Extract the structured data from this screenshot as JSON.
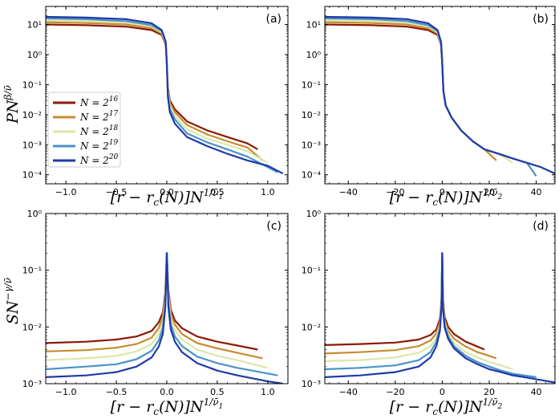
{
  "figure": {
    "ylabel_top": "PN^{β/ν̄}",
    "ylabel_bottom": "SN^{−γ/ν̄}",
    "xlabel_left": "[r − r_c(N)]N^{1/ν̄_1}",
    "xlabel_right": "[r − r_c(N)]N^{1/ν̄_2}"
  },
  "legend": {
    "entries": [
      {
        "label_base": "N = 2",
        "label_exp": "16",
        "color": "#8b1a06"
      },
      {
        "label_base": "N = 2",
        "label_exp": "17",
        "color": "#c68c30"
      },
      {
        "label_base": "N = 2",
        "label_exp": "18",
        "color": "#dde6a8"
      },
      {
        "label_base": "N = 2",
        "label_exp": "19",
        "color": "#4a93c8"
      },
      {
        "label_base": "N = 2",
        "label_exp": "20",
        "color": "#1f3aa8"
      }
    ]
  },
  "chart_data": [
    {
      "panel": "(a)",
      "type": "line",
      "xscale": "linear",
      "yscale": "log",
      "xlim": [
        -1.2,
        1.2
      ],
      "ylim": [
        5e-05,
        40
      ],
      "xticks": [
        -1.0,
        -0.5,
        0.0,
        0.5,
        1.0
      ],
      "xtick_labels": [
        "−1.0",
        "−0.5",
        "0.0",
        "0.5",
        "1.0"
      ],
      "yticks": [
        0.0001,
        0.001,
        0.01,
        0.1,
        1,
        10
      ],
      "ytick_labels": [
        "10^-4",
        "10^-3",
        "10^-2",
        "10^-1",
        "10^0",
        "10^1"
      ],
      "series": [
        {
          "name": "N = 2^16",
          "x": [
            -1.2,
            -0.8,
            -0.4,
            -0.15,
            -0.05,
            -0.01,
            0.0,
            0.01,
            0.03,
            0.08,
            0.2,
            0.4,
            0.6,
            0.8,
            0.9
          ],
          "y": [
            10,
            9.5,
            8.5,
            6.5,
            4.5,
            2.0,
            0.5,
            0.08,
            0.03,
            0.015,
            0.006,
            0.003,
            0.0018,
            0.0011,
            0.0007
          ]
        },
        {
          "name": "N = 2^17",
          "x": [
            -1.2,
            -0.8,
            -0.4,
            -0.15,
            -0.05,
            -0.01,
            0.0,
            0.01,
            0.03,
            0.08,
            0.2,
            0.4,
            0.6,
            0.8,
            0.95
          ],
          "y": [
            12,
            11.3,
            10,
            7.5,
            5.0,
            2.0,
            0.5,
            0.07,
            0.025,
            0.012,
            0.0045,
            0.0022,
            0.0013,
            0.0008,
            0.0003
          ]
        },
        {
          "name": "N = 2^18",
          "x": [
            -1.2,
            -0.8,
            -0.4,
            -0.15,
            -0.05,
            -0.01,
            0.0,
            0.01,
            0.03,
            0.08,
            0.2,
            0.4,
            0.6,
            0.8,
            1.0
          ],
          "y": [
            14,
            13.2,
            11.5,
            8.5,
            5.5,
            2.2,
            0.5,
            0.06,
            0.02,
            0.009,
            0.0033,
            0.0016,
            0.001,
            0.0006,
            0.00025
          ]
        },
        {
          "name": "N = 2^19",
          "x": [
            -1.2,
            -0.8,
            -0.4,
            -0.15,
            -0.05,
            -0.01,
            0.0,
            0.01,
            0.03,
            0.08,
            0.2,
            0.4,
            0.6,
            0.8,
            1.1
          ],
          "y": [
            16,
            15,
            13,
            9.5,
            6.0,
            2.4,
            0.5,
            0.05,
            0.015,
            0.007,
            0.0024,
            0.0012,
            0.0007,
            0.0004,
            0.00012
          ]
        },
        {
          "name": "N = 2^20",
          "x": [
            -1.2,
            -0.8,
            -0.4,
            -0.15,
            -0.05,
            -0.01,
            0.0,
            0.01,
            0.03,
            0.08,
            0.2,
            0.4,
            0.6,
            0.8,
            1.0,
            1.15
          ],
          "y": [
            18,
            17,
            15,
            11,
            6.5,
            2.6,
            0.5,
            0.04,
            0.012,
            0.005,
            0.0018,
            0.0009,
            0.0005,
            0.0003,
            0.0002,
            0.00011
          ]
        }
      ]
    },
    {
      "panel": "(b)",
      "type": "line",
      "xscale": "linear",
      "yscale": "log",
      "xlim": [
        -50,
        48
      ],
      "ylim": [
        5e-05,
        40
      ],
      "xticks": [
        -40,
        -20,
        0,
        20,
        40
      ],
      "xtick_labels": [
        "−40",
        "−20",
        "0",
        "20",
        "40"
      ],
      "yticks": [
        0.0001,
        0.001,
        0.01,
        0.1,
        1,
        10
      ],
      "ytick_labels": [
        "10^-4",
        "10^-3",
        "10^-2",
        "10^-1",
        "10^0",
        "10^1"
      ],
      "series": [
        {
          "name": "N = 2^16",
          "x": [
            -50,
            -30,
            -15,
            -6,
            -2,
            -0.5,
            0,
            0.5,
            1.5,
            4,
            8,
            13,
            18
          ],
          "y": [
            10,
            9.5,
            8.5,
            6.5,
            4.5,
            2.0,
            0.5,
            0.06,
            0.02,
            0.008,
            0.003,
            0.0013,
            0.0007
          ]
        },
        {
          "name": "N = 2^17",
          "x": [
            -50,
            -30,
            -15,
            -6,
            -2,
            -0.5,
            0,
            0.5,
            1.5,
            4,
            8,
            13,
            18,
            23
          ],
          "y": [
            12,
            11.3,
            10,
            7.5,
            5.0,
            2.0,
            0.5,
            0.06,
            0.02,
            0.008,
            0.003,
            0.0013,
            0.0007,
            0.0003
          ]
        },
        {
          "name": "N = 2^18",
          "x": [
            -50,
            -30,
            -15,
            -6,
            -2,
            -0.5,
            0,
            0.5,
            1.5,
            4,
            8,
            13,
            18,
            24,
            30
          ],
          "y": [
            14,
            13.2,
            11.5,
            8.5,
            5.5,
            2.2,
            0.5,
            0.06,
            0.02,
            0.008,
            0.003,
            0.0013,
            0.0007,
            0.0005,
            0.00025
          ]
        },
        {
          "name": "N = 2^19",
          "x": [
            -50,
            -30,
            -15,
            -6,
            -2,
            -0.5,
            0,
            0.5,
            1.5,
            4,
            8,
            13,
            18,
            24,
            30,
            36,
            40
          ],
          "y": [
            16,
            15,
            13,
            9.5,
            6.0,
            2.4,
            0.5,
            0.06,
            0.02,
            0.008,
            0.003,
            0.0013,
            0.0007,
            0.0005,
            0.00035,
            0.00025,
            9e-05
          ]
        },
        {
          "name": "N = 2^20",
          "x": [
            -50,
            -30,
            -15,
            -6,
            -2,
            -0.5,
            0,
            0.5,
            1.5,
            4,
            8,
            13,
            18,
            24,
            30,
            36,
            42,
            48
          ],
          "y": [
            18,
            17,
            15,
            11,
            6.5,
            2.6,
            0.5,
            0.06,
            0.02,
            0.008,
            0.003,
            0.0013,
            0.0007,
            0.0005,
            0.00035,
            0.00025,
            0.00018,
            0.00011
          ]
        }
      ]
    },
    {
      "panel": "(c)",
      "type": "line",
      "xscale": "linear",
      "yscale": "log",
      "xlim": [
        -1.2,
        1.2
      ],
      "ylim": [
        0.001,
        1
      ],
      "xticks": [
        -1.0,
        -0.5,
        0.0,
        0.5,
        1.0
      ],
      "xtick_labels": [
        "−1.0",
        "−0.5",
        "0.0",
        "0.5",
        "1.0"
      ],
      "yticks": [
        0.001,
        0.01,
        0.1,
        1
      ],
      "ytick_labels": [
        "10^-3",
        "10^-2",
        "10^-1",
        "10^0"
      ],
      "series": [
        {
          "name": "N = 2^16",
          "x": [
            -1.2,
            -0.8,
            -0.5,
            -0.3,
            -0.15,
            -0.08,
            -0.04,
            -0.015,
            0.0,
            0.015,
            0.04,
            0.08,
            0.15,
            0.3,
            0.5,
            0.7,
            0.9
          ],
          "y": [
            0.0052,
            0.0055,
            0.006,
            0.0068,
            0.0085,
            0.012,
            0.018,
            0.04,
            0.2,
            0.045,
            0.02,
            0.013,
            0.0095,
            0.0068,
            0.0055,
            0.0047,
            0.004
          ]
        },
        {
          "name": "N = 2^17",
          "x": [
            -1.2,
            -0.8,
            -0.5,
            -0.3,
            -0.15,
            -0.08,
            -0.04,
            -0.015,
            0.0,
            0.015,
            0.04,
            0.08,
            0.15,
            0.3,
            0.5,
            0.7,
            0.95
          ],
          "y": [
            0.0037,
            0.0039,
            0.0043,
            0.005,
            0.0065,
            0.0095,
            0.015,
            0.036,
            0.2,
            0.04,
            0.017,
            0.011,
            0.0075,
            0.0052,
            0.0042,
            0.0035,
            0.0028
          ]
        },
        {
          "name": "N = 2^18",
          "x": [
            -1.2,
            -0.8,
            -0.5,
            -0.3,
            -0.15,
            -0.08,
            -0.04,
            -0.015,
            0.0,
            0.015,
            0.04,
            0.08,
            0.15,
            0.3,
            0.5,
            0.7,
            1.0
          ],
          "y": [
            0.0026,
            0.0028,
            0.0031,
            0.0037,
            0.005,
            0.0075,
            0.012,
            0.03,
            0.2,
            0.034,
            0.014,
            0.0088,
            0.006,
            0.004,
            0.0031,
            0.0026,
            0.0019
          ]
        },
        {
          "name": "N = 2^19",
          "x": [
            -1.2,
            -0.8,
            -0.5,
            -0.3,
            -0.15,
            -0.08,
            -0.04,
            -0.015,
            0.0,
            0.015,
            0.04,
            0.08,
            0.15,
            0.3,
            0.5,
            0.7,
            1.1
          ],
          "y": [
            0.0018,
            0.002,
            0.0022,
            0.0027,
            0.0038,
            0.0058,
            0.0095,
            0.026,
            0.2,
            0.028,
            0.011,
            0.0068,
            0.0046,
            0.003,
            0.0023,
            0.0019,
            0.0014
          ]
        },
        {
          "name": "N = 2^20",
          "x": [
            -1.2,
            -0.8,
            -0.5,
            -0.3,
            -0.15,
            -0.08,
            -0.04,
            -0.015,
            0.0,
            0.015,
            0.04,
            0.08,
            0.15,
            0.3,
            0.5,
            0.7,
            1.0,
            1.15
          ],
          "y": [
            0.0013,
            0.0014,
            0.0016,
            0.002,
            0.0029,
            0.0045,
            0.0075,
            0.022,
            0.2,
            0.023,
            0.009,
            0.0055,
            0.0036,
            0.0023,
            0.0017,
            0.0014,
            0.0011,
            0.001
          ]
        }
      ]
    },
    {
      "panel": "(d)",
      "type": "line",
      "xscale": "linear",
      "yscale": "log",
      "xlim": [
        -50,
        48
      ],
      "ylim": [
        0.001,
        1
      ],
      "xticks": [
        -40,
        -20,
        0,
        20,
        40
      ],
      "xtick_labels": [
        "−40",
        "−20",
        "0",
        "20",
        "40"
      ],
      "yticks": [
        0.001,
        0.01,
        0.1,
        1
      ],
      "ytick_labels": [
        "10^-3",
        "10^-2",
        "10^-1",
        "10^0"
      ],
      "series": [
        {
          "name": "N = 2^16",
          "x": [
            -50,
            -35,
            -20,
            -10,
            -5,
            -2.5,
            -1,
            -0.3,
            0,
            0.3,
            1,
            2.5,
            5,
            10,
            15,
            18
          ],
          "y": [
            0.0048,
            0.005,
            0.0053,
            0.006,
            0.0072,
            0.009,
            0.014,
            0.03,
            0.2,
            0.03,
            0.015,
            0.01,
            0.0075,
            0.0055,
            0.0045,
            0.004
          ]
        },
        {
          "name": "N = 2^17",
          "x": [
            -50,
            -35,
            -20,
            -10,
            -5,
            -2.5,
            -1,
            -0.3,
            0,
            0.3,
            1,
            2.5,
            5,
            10,
            15,
            20,
            23
          ],
          "y": [
            0.0034,
            0.0036,
            0.0039,
            0.0046,
            0.0058,
            0.0077,
            0.012,
            0.028,
            0.2,
            0.028,
            0.013,
            0.0085,
            0.0062,
            0.0045,
            0.0036,
            0.0031,
            0.0028
          ]
        },
        {
          "name": "N = 2^18",
          "x": [
            -50,
            -35,
            -20,
            -10,
            -5,
            -2.5,
            -1,
            -0.3,
            0,
            0.3,
            1,
            2.5,
            5,
            10,
            15,
            20,
            25,
            30
          ],
          "y": [
            0.0025,
            0.0026,
            0.0029,
            0.0035,
            0.0046,
            0.0065,
            0.011,
            0.026,
            0.2,
            0.026,
            0.012,
            0.0075,
            0.0052,
            0.0036,
            0.0029,
            0.0024,
            0.0021,
            0.0018
          ]
        },
        {
          "name": "N = 2^19",
          "x": [
            -50,
            -35,
            -20,
            -10,
            -5,
            -2.5,
            -1,
            -0.3,
            0,
            0.3,
            1,
            2.5,
            5,
            10,
            15,
            20,
            25,
            30,
            35,
            40
          ],
          "y": [
            0.0018,
            0.0019,
            0.0021,
            0.0026,
            0.0036,
            0.0055,
            0.0095,
            0.024,
            0.2,
            0.024,
            0.011,
            0.0068,
            0.0046,
            0.0031,
            0.0024,
            0.002,
            0.0017,
            0.0015,
            0.0014,
            0.0013
          ]
        },
        {
          "name": "N = 2^20",
          "x": [
            -50,
            -35,
            -20,
            -10,
            -5,
            -2.5,
            -1,
            -0.3,
            0,
            0.3,
            1,
            2.5,
            5,
            10,
            15,
            20,
            25,
            30,
            35,
            40,
            48
          ],
          "y": [
            0.0013,
            0.0014,
            0.0016,
            0.002,
            0.0029,
            0.0046,
            0.0085,
            0.022,
            0.2,
            0.022,
            0.0098,
            0.0062,
            0.0042,
            0.0028,
            0.0022,
            0.0018,
            0.0016,
            0.0014,
            0.0013,
            0.0012,
            0.00105
          ]
        }
      ]
    }
  ]
}
